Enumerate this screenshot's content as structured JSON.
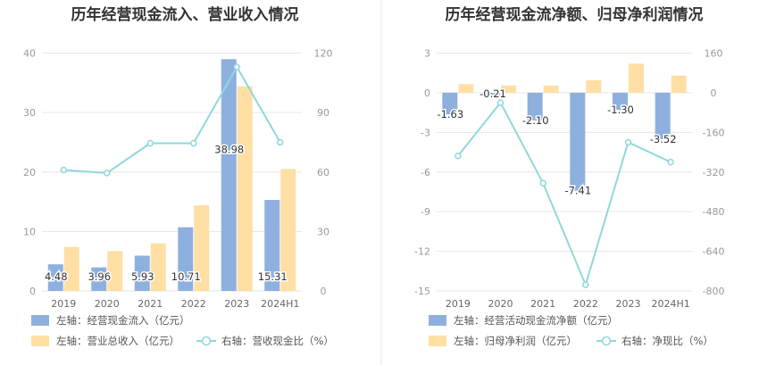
{
  "colors": {
    "bar_primary": "#8eb0df",
    "bar_secondary": "#ffdfa3",
    "line": "#8fd8dc",
    "grid": "#e6e6e6",
    "divider": "#e8e8e8"
  },
  "chart_data": [
    {
      "type": "bar",
      "title": "历年经营现金流入、营业收入情况",
      "categories": [
        "2019",
        "2020",
        "2021",
        "2022",
        "2023",
        "2024H1"
      ],
      "left_axis": {
        "min": 0,
        "max": 40,
        "ticks": [
          "0",
          "10",
          "20",
          "30",
          "40"
        ]
      },
      "right_axis": {
        "min": 0,
        "max": 120,
        "ticks": [
          "0",
          "30",
          "60",
          "90",
          "120"
        ]
      },
      "series": [
        {
          "name": "左轴：经营现金流入（亿元）",
          "axis": "left",
          "kind": "bar",
          "values": [
            4.48,
            3.96,
            5.93,
            10.71,
            38.98,
            15.31
          ],
          "labels": [
            "4.48",
            "3.96",
            "5.93",
            "10.71",
            "38.98",
            "15.31"
          ]
        },
        {
          "name": "左轴：营业总收入（亿元）",
          "axis": "left",
          "kind": "bar",
          "values": [
            7.4,
            6.7,
            8.0,
            14.4,
            34.4,
            20.5
          ]
        },
        {
          "name": "右轴：营收现金比（%）",
          "axis": "right",
          "kind": "line",
          "values": [
            61,
            59.5,
            74.5,
            74.5,
            113,
            75
          ]
        }
      ],
      "grid": true,
      "legend": "bottom-left"
    },
    {
      "type": "bar",
      "title": "历年经营现金流净额、归母净利润情况",
      "categories": [
        "2019",
        "2020",
        "2021",
        "2022",
        "2023",
        "2024H1"
      ],
      "left_axis": {
        "min": -15,
        "max": 3,
        "ticks": [
          "-15",
          "-12",
          "-9",
          "-6",
          "-3",
          "0",
          "3"
        ]
      },
      "right_axis": {
        "min": -800,
        "max": 160,
        "ticks": [
          "-800",
          "-640",
          "-480",
          "-320",
          "-160",
          "0",
          "160"
        ]
      },
      "series": [
        {
          "name": "左轴：经营活动现金流净额（亿元）",
          "axis": "left",
          "kind": "bar",
          "values": [
            -1.63,
            -0.21,
            -2.1,
            -7.41,
            -1.3,
            -3.52
          ],
          "labels": [
            "-1.63",
            "-0.21",
            "-2.10",
            "-7.41",
            "-1.30",
            "-3.52"
          ]
        },
        {
          "name": "左轴：归母净利润（亿元）",
          "axis": "left",
          "kind": "bar",
          "values": [
            0.65,
            0.55,
            0.55,
            0.95,
            2.2,
            1.3
          ]
        },
        {
          "name": "右轴：净现比（%）",
          "axis": "right",
          "kind": "line",
          "values": [
            -255,
            -40,
            -365,
            -775,
            -200,
            -280
          ]
        }
      ],
      "grid": true,
      "legend": "bottom-left"
    }
  ]
}
